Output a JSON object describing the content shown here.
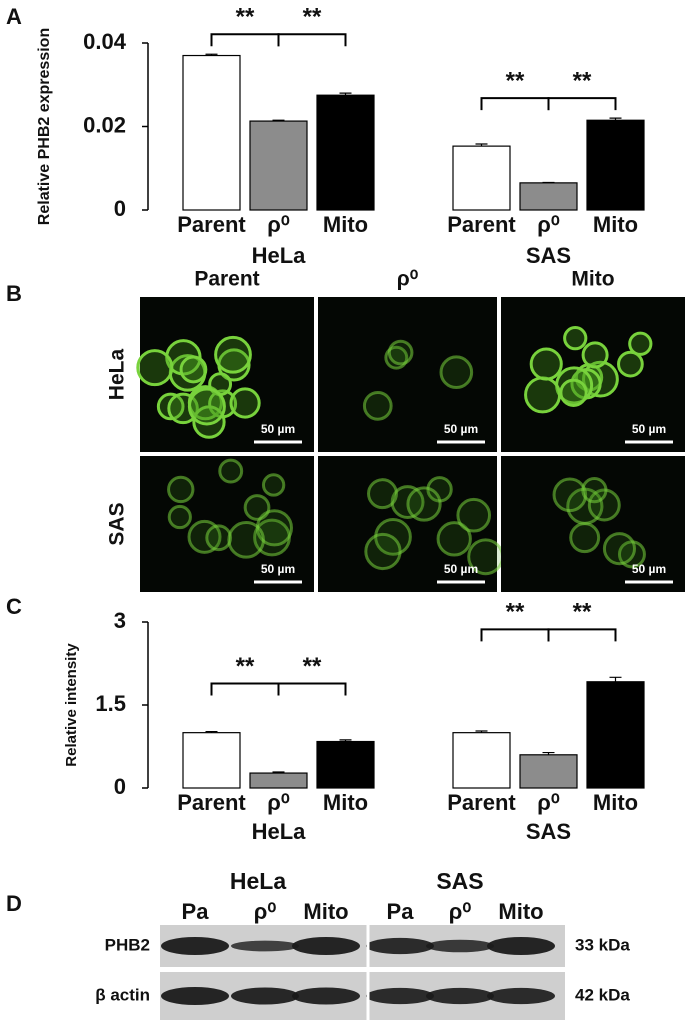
{
  "chart_data": [
    {
      "type": "bar",
      "ylabel": "Relative PHB2 expression",
      "groups": [
        "HeLa",
        "SAS"
      ],
      "series": [
        {
          "name": "Parent",
          "color": "#ffffff",
          "values": [
            0.037,
            0.0153
          ],
          "errors": [
            0.0003,
            0.0005
          ]
        },
        {
          "name": "ρ⁰",
          "color": "#8c8c8c",
          "values": [
            0.0213,
            0.0065
          ],
          "errors": [
            0.0002,
            0.0001
          ]
        },
        {
          "name": "Mito",
          "color": "#000000",
          "values": [
            0.0275,
            0.0215
          ],
          "errors": [
            0.0005,
            0.0005
          ]
        }
      ],
      "ylim": [
        0,
        0.04
      ],
      "yticks": [
        0,
        0.02,
        0.04
      ],
      "annotations": [
        "**",
        "**",
        "**",
        "**"
      ]
    },
    {
      "type": "bar",
      "ylabel": "Relative intensity",
      "groups": [
        "HeLa",
        "SAS"
      ],
      "series": [
        {
          "name": "Parent",
          "color": "#ffffff",
          "values": [
            1.0,
            1.0
          ],
          "errors": [
            0.02,
            0.03
          ]
        },
        {
          "name": "ρ⁰",
          "color": "#8c8c8c",
          "values": [
            0.27,
            0.6
          ],
          "errors": [
            0.02,
            0.04
          ]
        },
        {
          "name": "Mito",
          "color": "#000000",
          "values": [
            0.84,
            1.92
          ],
          "errors": [
            0.03,
            0.08
          ]
        }
      ],
      "ylim": [
        0,
        3
      ],
      "yticks": [
        0,
        1.5,
        3
      ],
      "annotations": [
        "**",
        "**",
        "**",
        "**"
      ]
    }
  ],
  "panel_labels": [
    "A",
    "B",
    "C",
    "D"
  ],
  "microscopy": {
    "columns": [
      "Parent",
      "ρ⁰",
      "Mito"
    ],
    "rows": [
      "HeLa",
      "SAS"
    ],
    "scale_bar": "50 µm"
  },
  "blot": {
    "groups": [
      "HeLa",
      "SAS"
    ],
    "lanes": [
      "Pa",
      "ρ⁰",
      "Mito",
      "Pa",
      "ρ⁰",
      "Mito"
    ],
    "rows": [
      "PHB2",
      "β actin"
    ],
    "sizes": [
      "33 kDa",
      "42 kDa"
    ]
  }
}
